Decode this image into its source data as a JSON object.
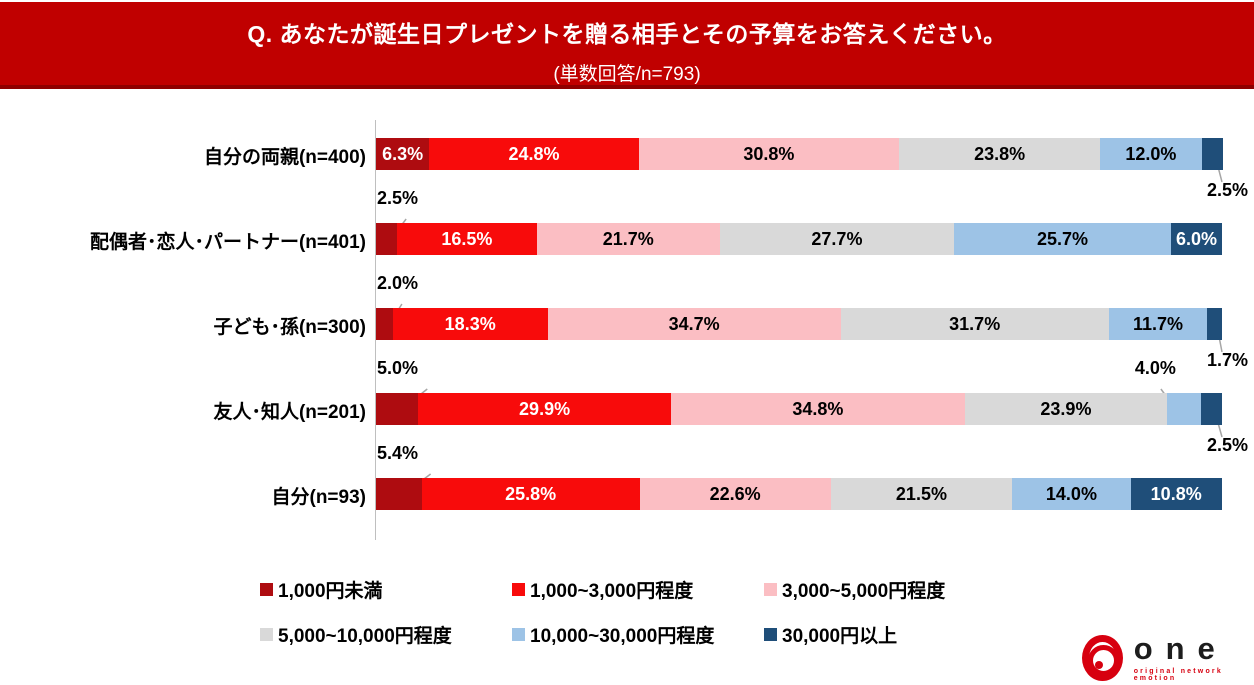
{
  "header": {
    "title": "Q. あなたが誕生日プレゼントを贈る相手とその予算をお答えください。",
    "subtitle": "(単数回答/n=793)",
    "bg_color": "#C00000"
  },
  "chart_data": {
    "type": "bar",
    "stacked": true,
    "orientation": "horizontal",
    "value_unit": "%",
    "value_range": [
      0,
      100
    ],
    "grid": false,
    "legend_position": "bottom",
    "categories": [
      "自分の両親(n=400)",
      "配偶者･恋人･パートナー(n=401)",
      "子ども･孫(n=300)",
      "友人･知人(n=201)",
      "自分(n=93)"
    ],
    "series": [
      {
        "name": "1,000円未満",
        "color": "#AE0C10",
        "label_color": "#FFFFFF",
        "values": [
          6.3,
          2.5,
          2.0,
          5.0,
          5.4
        ]
      },
      {
        "name": "1,000~3,000円程度",
        "color": "#F80B0B",
        "label_color": "#FFFFFF",
        "values": [
          24.8,
          16.5,
          18.3,
          29.9,
          25.8
        ]
      },
      {
        "name": "3,000~5,000円程度",
        "color": "#FBBEC3",
        "label_color": "#000000",
        "values": [
          30.8,
          21.7,
          34.7,
          34.8,
          22.6
        ]
      },
      {
        "name": "5,000~10,000円程度",
        "color": "#D9D9D9",
        "label_color": "#000000",
        "values": [
          23.8,
          27.7,
          31.7,
          23.9,
          21.5
        ]
      },
      {
        "name": "10,000~30,000円程度",
        "color": "#9DC3E6",
        "label_color": "#000000",
        "values": [
          12.0,
          25.7,
          11.7,
          4.0,
          14.0
        ]
      },
      {
        "name": "30,000円以上",
        "color": "#1F4E79",
        "label_color": "#FFFFFF",
        "values": [
          2.5,
          6.0,
          1.7,
          2.5,
          10.8
        ]
      }
    ],
    "callouts": [
      {
        "row": 0,
        "series": 5,
        "position": "below-right"
      },
      {
        "row": 1,
        "series": 0,
        "position": "above-left"
      },
      {
        "row": 2,
        "series": 0,
        "position": "above-left"
      },
      {
        "row": 2,
        "series": 5,
        "position": "below-right"
      },
      {
        "row": 3,
        "series": 0,
        "position": "above-left"
      },
      {
        "row": 3,
        "series": 4,
        "position": "above-right"
      },
      {
        "row": 3,
        "series": 5,
        "position": "below-right"
      },
      {
        "row": 4,
        "series": 0,
        "position": "above-left"
      }
    ],
    "leader_line_color": "#A6A6A6"
  },
  "logo": {
    "text": "one",
    "tagline": "original network emotion",
    "color": "#D7000F"
  }
}
